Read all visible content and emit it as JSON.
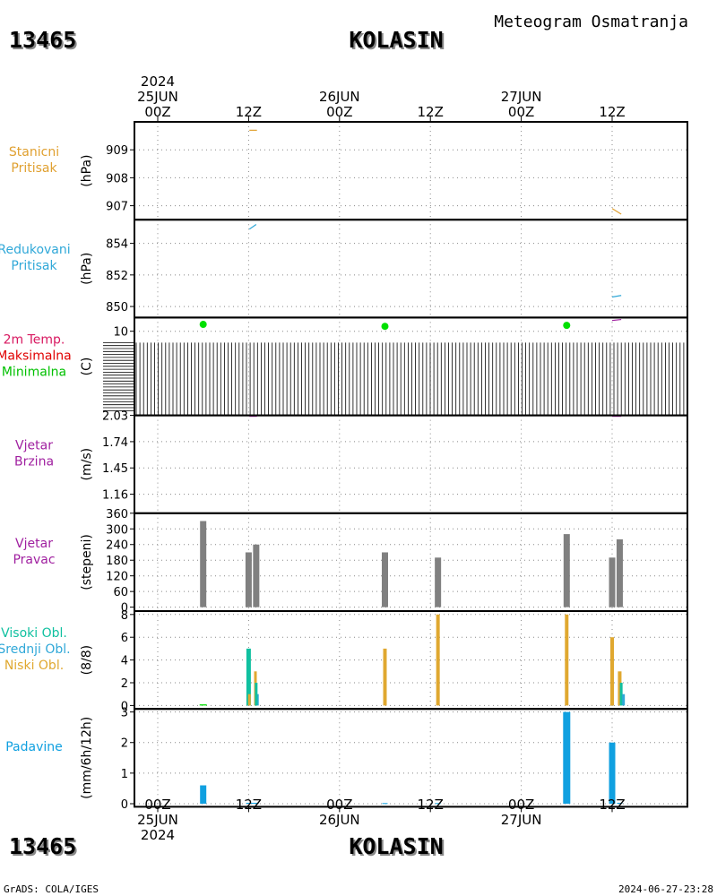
{
  "station_id": "13465",
  "station_name": "KOLASIN",
  "meteogram_title": "Meteogram Osmatranja",
  "footer_left": "GrADS: COLA/IGES",
  "footer_right": "2024-06-27-23:28",
  "colors": {
    "frame": "#000000",
    "grid": "#888888",
    "pressure": "#e0a030",
    "reduced": "#30a8d8",
    "temp_label": "#d81860",
    "max_label": "#e00000",
    "min_label": "#00c000",
    "min_marker": "#00e000",
    "wind": "#a020a0",
    "bars_gray": "#808080",
    "cloud_high": "#10c0a0",
    "cloud_mid": "#30a8d8",
    "cloud_low": "#e0a830",
    "precip": "#10a0e0"
  },
  "chart_data": {
    "type": "bar",
    "time_axis": {
      "start": "2024-06-25 00Z",
      "end": "2024-06-27 12Z",
      "top_labels": [
        {
          "t": 0,
          "lines": [
            "2024",
            "25JUN",
            "00Z"
          ]
        },
        {
          "t": 12,
          "lines": [
            "12Z"
          ]
        },
        {
          "t": 24,
          "lines": [
            "26JUN",
            "00Z"
          ]
        },
        {
          "t": 36,
          "lines": [
            "12Z"
          ]
        },
        {
          "t": 48,
          "lines": [
            "27JUN",
            "00Z"
          ]
        },
        {
          "t": 60,
          "lines": [
            "12Z"
          ]
        }
      ],
      "bottom_labels": [
        {
          "t": 0,
          "lines": [
            "00Z",
            "25JUN",
            "2024"
          ]
        },
        {
          "t": 12,
          "lines": [
            "12Z"
          ]
        },
        {
          "t": 24,
          "lines": [
            "00Z",
            "26JUN"
          ]
        },
        {
          "t": 36,
          "lines": [
            "12Z"
          ]
        },
        {
          "t": 48,
          "lines": [
            "00Z",
            "27JUN"
          ]
        },
        {
          "t": 60,
          "lines": [
            "12Z"
          ]
        }
      ]
    },
    "panels": [
      {
        "key": "station_pressure",
        "labels": [
          "Stanicni",
          "Pritisak"
        ],
        "label_colors": [
          "pressure",
          "pressure"
        ],
        "unit": "(hPa)",
        "ylim": [
          906.5,
          910
        ],
        "ticks": [
          "909",
          "908",
          "907"
        ],
        "tick_values": [
          909,
          908,
          907
        ],
        "lines": [
          {
            "color": "pressure",
            "points": [
              [
                12.1,
                909.7
              ],
              [
                13.1,
                909.7
              ]
            ]
          },
          {
            "color": "pressure",
            "points": [
              [
                60.0,
                906.9
              ],
              [
                61.2,
                906.7
              ]
            ]
          }
        ]
      },
      {
        "key": "reduced_pressure",
        "labels": [
          "Redukovani",
          "Pritisak"
        ],
        "label_colors": [
          "reduced",
          "reduced"
        ],
        "unit": "(hPa)",
        "ylim": [
          849.3,
          855.5
        ],
        "ticks": [
          "854",
          "852",
          "850"
        ],
        "tick_values": [
          854,
          852,
          850
        ],
        "lines": [
          {
            "color": "reduced",
            "points": [
              [
                12.1,
                854.9
              ],
              [
                13.0,
                855.2
              ]
            ]
          },
          {
            "color": "reduced",
            "points": [
              [
                60.0,
                850.6
              ],
              [
                61.2,
                850.7
              ]
            ]
          }
        ]
      },
      {
        "key": "temperature",
        "labels": [
          "2m Temp.",
          "Maksimalna",
          "Minimalna"
        ],
        "label_colors": [
          "temp_label",
          "max_label",
          "min_label"
        ],
        "unit": "(C)",
        "ylim": [
          0,
          1
        ],
        "ticks": [
          "10"
        ],
        "tick_values": [
          0.86
        ],
        "dense_ticks": true,
        "markers": [
          {
            "color": "min_marker",
            "t": 6,
            "v": 0.93
          },
          {
            "color": "min_marker",
            "t": 30,
            "v": 0.91
          },
          {
            "color": "min_marker",
            "t": 54,
            "v": 0.92
          }
        ],
        "lines": [
          {
            "color": "wind",
            "points": [
              [
                60.0,
                0.97
              ],
              [
                61.2,
                0.98
              ]
            ]
          }
        ]
      },
      {
        "key": "wind_speed",
        "labels": [
          "Vjetar",
          "Brzina"
        ],
        "label_colors": [
          "wind",
          "wind"
        ],
        "unit": "(m/s)",
        "ylim": [
          0.95,
          2.03
        ],
        "ticks": [
          "2.03",
          "1.74",
          "1.45",
          "1.16"
        ],
        "tick_values": [
          2.03,
          1.74,
          1.45,
          1.16
        ],
        "lines": [
          {
            "color": "wind",
            "points": [
              [
                12.1,
                2.02
              ],
              [
                13.1,
                2.02
              ]
            ]
          },
          {
            "color": "wind",
            "points": [
              [
                60.0,
                2.02
              ],
              [
                61.2,
                2.02
              ]
            ]
          }
        ]
      },
      {
        "key": "wind_direction",
        "labels": [
          "Vjetar",
          "Pravac"
        ],
        "label_colors": [
          "wind",
          "wind"
        ],
        "unit": "(stepeni)",
        "ylim": [
          -15,
          360
        ],
        "ticks": [
          "360",
          "300",
          "240",
          "180",
          "120",
          "60",
          "0"
        ],
        "tick_values": [
          360,
          300,
          240,
          180,
          120,
          60,
          0
        ],
        "bars": [
          {
            "t": 6,
            "v": 330,
            "color": "bars_gray"
          },
          {
            "t": 12,
            "v": 210,
            "color": "bars_gray"
          },
          {
            "t": 13,
            "v": 240,
            "color": "bars_gray"
          },
          {
            "t": 30,
            "v": 210,
            "color": "bars_gray"
          },
          {
            "t": 37,
            "v": 190,
            "color": "bars_gray"
          },
          {
            "t": 54,
            "v": 280,
            "color": "bars_gray"
          },
          {
            "t": 60,
            "v": 190,
            "color": "bars_gray"
          },
          {
            "t": 61,
            "v": 260,
            "color": "bars_gray"
          }
        ]
      },
      {
        "key": "clouds",
        "labels": [
          "Visoki Obl.",
          "Srednji Obl.",
          "Niski Obl."
        ],
        "label_colors": [
          "cloud_high",
          "cloud_mid",
          "cloud_low"
        ],
        "unit": "(8/8)",
        "ylim": [
          -0.3,
          8.3
        ],
        "ticks": [
          "8",
          "6",
          "4",
          "2",
          "0"
        ],
        "tick_values": [
          8,
          6,
          4,
          2,
          0
        ],
        "bars": [
          {
            "t": 6,
            "v": 0.1,
            "color": "min_marker",
            "w": 8
          },
          {
            "t": 12,
            "v": 5,
            "color": "cloud_high",
            "w": 5
          },
          {
            "t": 12.1,
            "v": 1,
            "color": "cloud_low",
            "w": 3
          },
          {
            "t": 12.9,
            "v": 3,
            "color": "cloud_low",
            "w": 3
          },
          {
            "t": 13.1,
            "v": 1,
            "color": "cloud_mid",
            "w": 4
          },
          {
            "t": 13.0,
            "v": 2,
            "color": "cloud_high",
            "w": 3
          },
          {
            "t": 30,
            "v": 5,
            "color": "cloud_low",
            "w": 4
          },
          {
            "t": 37,
            "v": 8,
            "color": "cloud_low",
            "w": 4
          },
          {
            "t": 54,
            "v": 8,
            "color": "cloud_low",
            "w": 4
          },
          {
            "t": 60,
            "v": 6,
            "color": "cloud_low",
            "w": 4
          },
          {
            "t": 61,
            "v": 3,
            "color": "cloud_low",
            "w": 4
          },
          {
            "t": 61.2,
            "v": 2,
            "color": "cloud_high",
            "w": 3
          },
          {
            "t": 61.5,
            "v": 1,
            "color": "cloud_mid",
            "w": 3
          }
        ]
      },
      {
        "key": "precipitation",
        "labels": [
          "Padavine"
        ],
        "label_colors": [
          "precip"
        ],
        "unit": "(mm/6h/12h)",
        "ylim": [
          -0.1,
          3.1
        ],
        "ticks": [
          "3",
          "2",
          "1",
          "0"
        ],
        "tick_values": [
          3,
          2,
          1,
          0
        ],
        "bars": [
          {
            "t": 6,
            "v": 0.6,
            "color": "precip",
            "w": 7
          },
          {
            "t": 12.5,
            "v": 0.03,
            "color": "precip",
            "w": 14
          },
          {
            "t": 30,
            "v": 0.02,
            "color": "precip",
            "w": 6
          },
          {
            "t": 37,
            "v": 0.02,
            "color": "precip",
            "w": 6
          },
          {
            "t": 54,
            "v": 3.0,
            "color": "precip",
            "w": 8
          },
          {
            "t": 60,
            "v": 2.0,
            "color": "precip",
            "w": 7
          },
          {
            "t": 61,
            "v": 0.03,
            "color": "precip",
            "w": 6
          }
        ]
      }
    ]
  }
}
